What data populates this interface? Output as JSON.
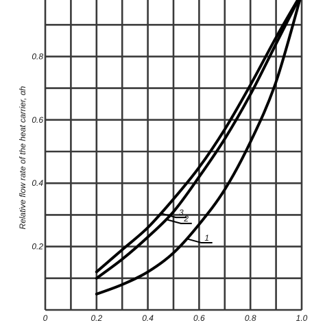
{
  "chart_data": {
    "type": "line",
    "title": "",
    "xlabel": "",
    "ylabel": "Relative flow rate of the heat carrier, αh",
    "xlim": [
      0.0,
      1.0
    ],
    "ylim": [
      0.0,
      1.0
    ],
    "x_ticks": [
      "0",
      "0.2",
      "0.4",
      "0.6",
      "0.8",
      "1.0"
    ],
    "y_ticks": [
      "0.2",
      "0.4",
      "0.6",
      "0.8"
    ],
    "grid": true,
    "series": [
      {
        "name": "1",
        "x": [
          0.2,
          0.3,
          0.4,
          0.5,
          0.6,
          0.7,
          0.8,
          0.9,
          1.0
        ],
        "y": [
          0.05,
          0.08,
          0.12,
          0.18,
          0.27,
          0.38,
          0.53,
          0.72,
          1.0
        ]
      },
      {
        "name": "2",
        "x": [
          0.2,
          0.3,
          0.4,
          0.5,
          0.6,
          0.7,
          0.8,
          0.9,
          1.0
        ],
        "y": [
          0.1,
          0.16,
          0.23,
          0.31,
          0.42,
          0.54,
          0.68,
          0.84,
          1.0
        ]
      },
      {
        "name": "3",
        "x": [
          0.2,
          0.3,
          0.4,
          0.5,
          0.6,
          0.7,
          0.8,
          0.9,
          1.0
        ],
        "y": [
          0.12,
          0.19,
          0.26,
          0.35,
          0.45,
          0.57,
          0.71,
          0.86,
          1.0
        ]
      }
    ],
    "curve_labels": [
      {
        "text": "1",
        "series": 0,
        "at_x": 0.55
      },
      {
        "text": "2",
        "series": 1,
        "at_x": 0.47
      },
      {
        "text": "3",
        "series": 2,
        "at_x": 0.45
      }
    ]
  }
}
